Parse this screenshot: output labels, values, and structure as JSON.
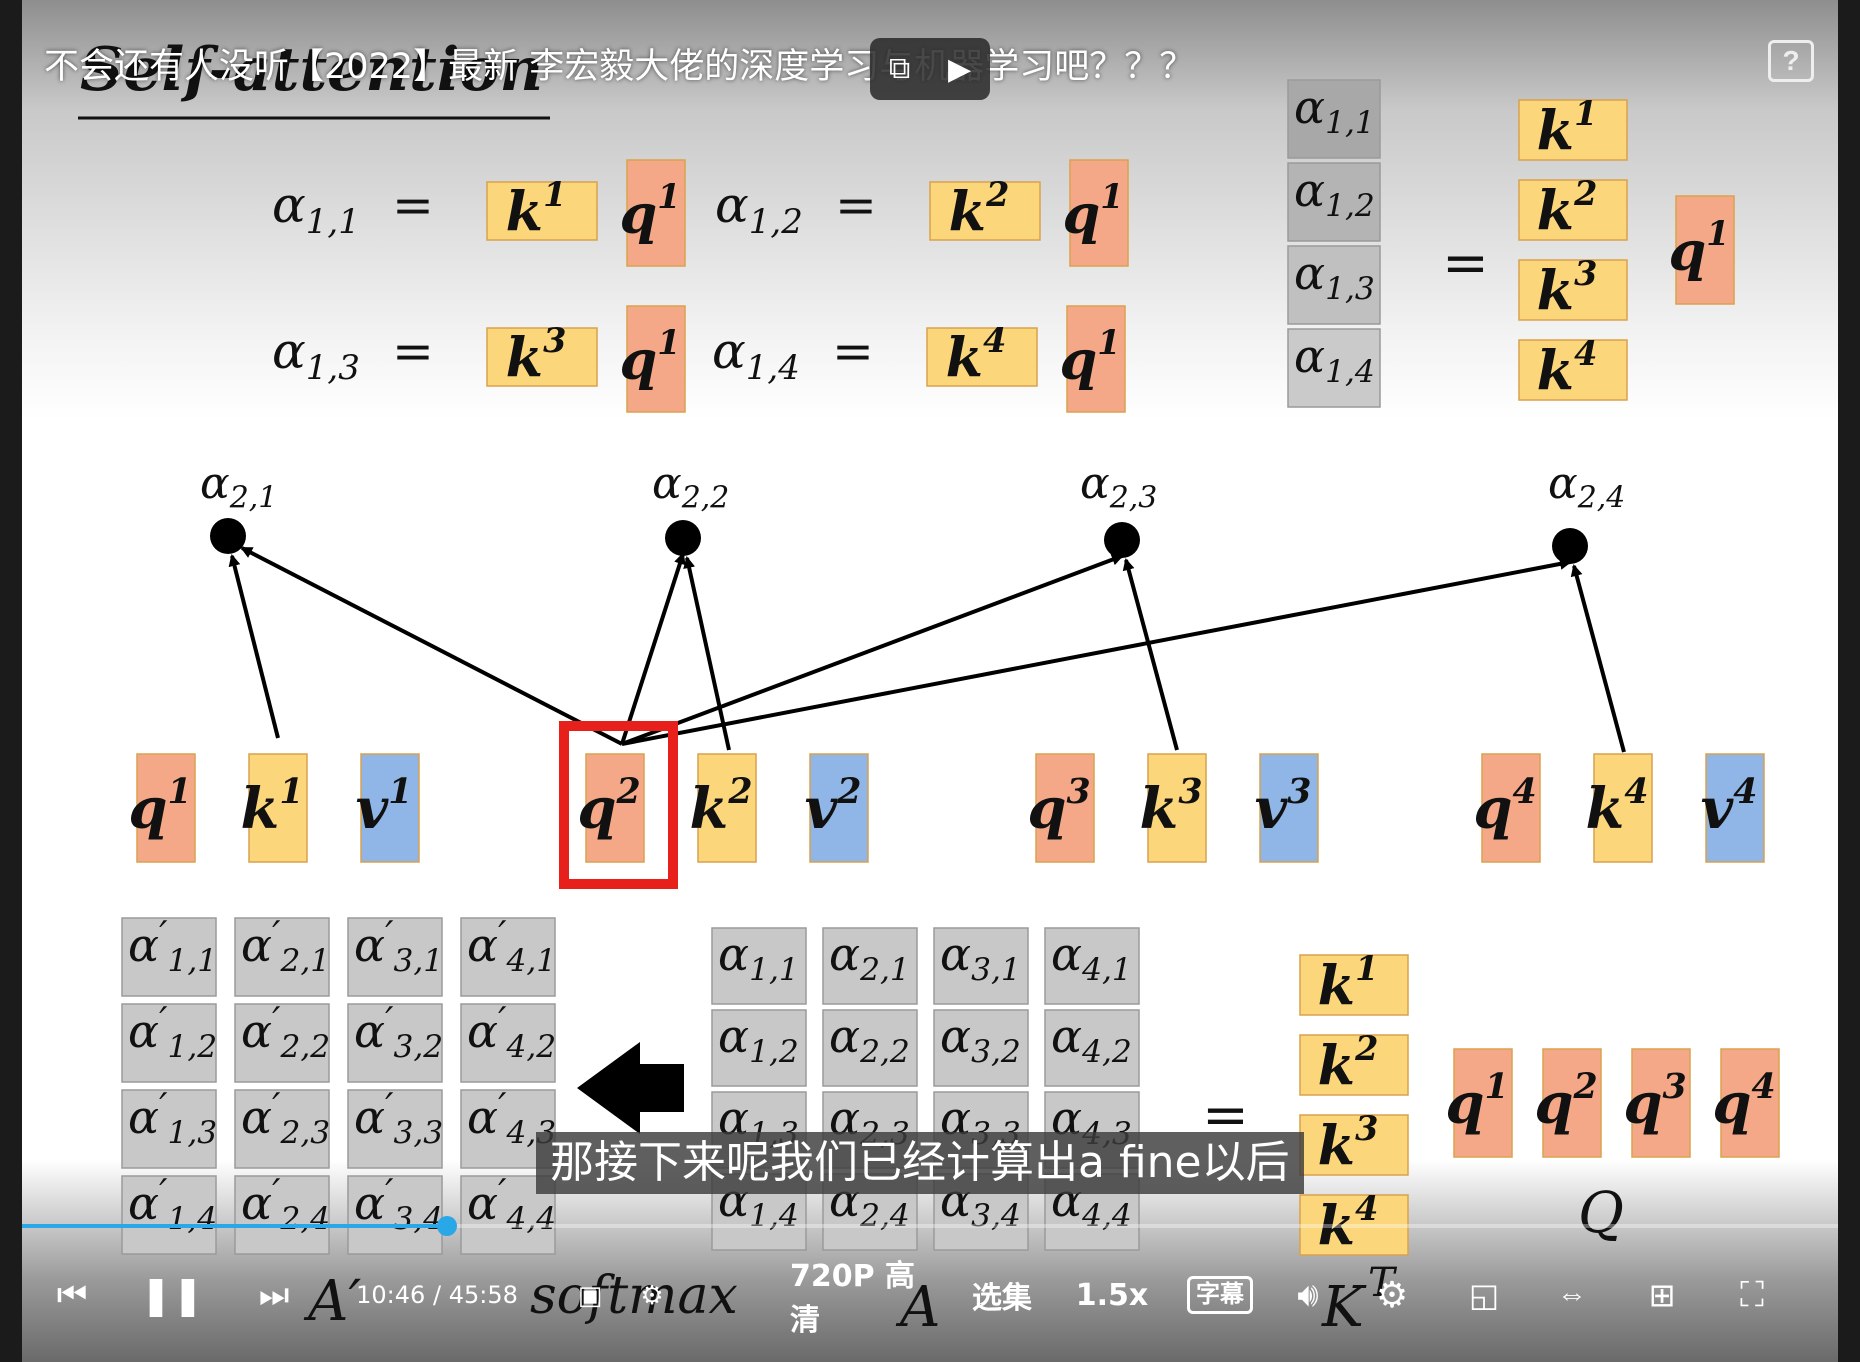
{
  "video": {
    "title": "不会还有人没听【2022】最新 李宏毅大佬的深度学习与机器学习吧？？？",
    "subtitle": "那接下来呢我们已经计算出a fine以后",
    "time_current": "10:46",
    "time_separator": "/",
    "time_total": "45:58",
    "progress_fraction": 0.2342,
    "quality_label": "720P 高清",
    "episodes_label": "选集",
    "speed_label": "1.5x",
    "caption_label": "字幕",
    "help_label": "?"
  },
  "slide": {
    "heading": "Self-attention",
    "eq_rows": [
      [
        {
          "a": "α",
          "sub": "1,1",
          "k": "1",
          "q": "1"
        },
        {
          "a": "α",
          "sub": "1,2",
          "k": "2",
          "q": "1"
        }
      ],
      [
        {
          "a": "α",
          "sub": "1,3",
          "k": "3",
          "q": "1"
        },
        {
          "a": "α",
          "sub": "1,4",
          "k": "4",
          "q": "1"
        }
      ]
    ],
    "alpha_col": [
      "1,1",
      "1,2",
      "1,3",
      "1,4"
    ],
    "k_col": [
      "1",
      "2",
      "3",
      "4"
    ],
    "node_labels": [
      "2,1",
      "2,2",
      "2,3",
      "2,4"
    ],
    "vectors": [
      {
        "q": "1",
        "k": "1",
        "v": "1"
      },
      {
        "q": "2",
        "k": "2",
        "v": "2"
      },
      {
        "q": "3",
        "k": "3",
        "v": "3"
      },
      {
        "q": "4",
        "k": "4",
        "v": "4"
      }
    ],
    "aprime": [
      [
        "1,1",
        "2,1",
        "3,1",
        "4,1"
      ],
      [
        "1,2",
        "2,2",
        "3,2",
        "4,2"
      ],
      [
        "1,3",
        "2,3",
        "3,3",
        "4,3"
      ],
      [
        "1,4",
        "2,4",
        "3,4",
        "4,4"
      ]
    ],
    "amatrix": [
      [
        "1,1",
        "2,1",
        "3,1",
        "4,1"
      ],
      [
        "1,2",
        "2,2",
        "3,2",
        "4,2"
      ],
      [
        "1,3",
        "2,3",
        "3,3",
        "4,3"
      ],
      [
        "1,4",
        "2,4",
        "3,4",
        "4,4"
      ]
    ],
    "kt_col": [
      "1",
      "2",
      "3",
      "4"
    ],
    "q_row": [
      "1",
      "2",
      "3",
      "4"
    ],
    "label_aprime": "A′",
    "label_softmax": "softmax",
    "label_A": "A",
    "label_KT": "K",
    "label_T": "T",
    "label_Q": "Q",
    "letters": {
      "alpha": "α",
      "k": "k",
      "q": "q",
      "v": "v",
      "prime": "′",
      "equals": "="
    },
    "colors": {
      "q": "#f4a888",
      "k": "#fcd67a",
      "v": "#8fb6e6",
      "grey": "#c8c8c8",
      "highlight": "#e8201c"
    }
  }
}
